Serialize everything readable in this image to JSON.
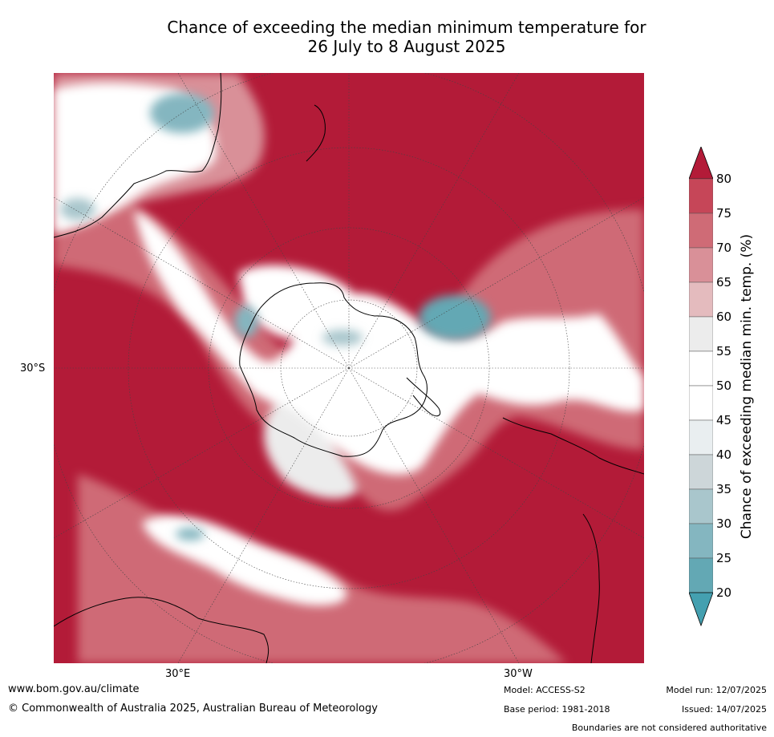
{
  "title": {
    "line1": "Chance of exceeding the median minimum temperature for",
    "line2": "26 July to 8 August 2025"
  },
  "axis_labels": {
    "lat_30s": "30°S",
    "lon_30e": "30°E",
    "lon_30w": "30°W"
  },
  "colorbar": {
    "label": "Chance of exceeding median min. temp. (%)",
    "ticks": [
      "80",
      "75",
      "70",
      "65",
      "60",
      "55",
      "50",
      "45",
      "40",
      "35",
      "30",
      "25",
      "20"
    ],
    "colors": [
      "#b31b38",
      "#c64658",
      "#cf6b76",
      "#d99098",
      "#e4bbbe",
      "#ececec",
      "#ffffff",
      "#ffffff",
      "#e9eef0",
      "#cdd6d9",
      "#a9c6cc",
      "#84b6c0",
      "#63a8b4",
      "#44a0b0"
    ]
  },
  "footer": {
    "website": "www.bom.gov.au/climate",
    "copyright": "© Commonwealth of Australia 2025, Australian Bureau of Meteorology",
    "model": "Model: ACCESS-S2",
    "base_period": "Base period: 1981-2018",
    "model_run": "Model run: 12/07/2025",
    "issued": "Issued: 14/07/2025",
    "disclaimer": "Boundaries are not considered authoritative"
  },
  "map": {
    "projection": "polar stereographic (south pole)",
    "background_color": "#b31b38",
    "land_outline_color": "#000000"
  }
}
